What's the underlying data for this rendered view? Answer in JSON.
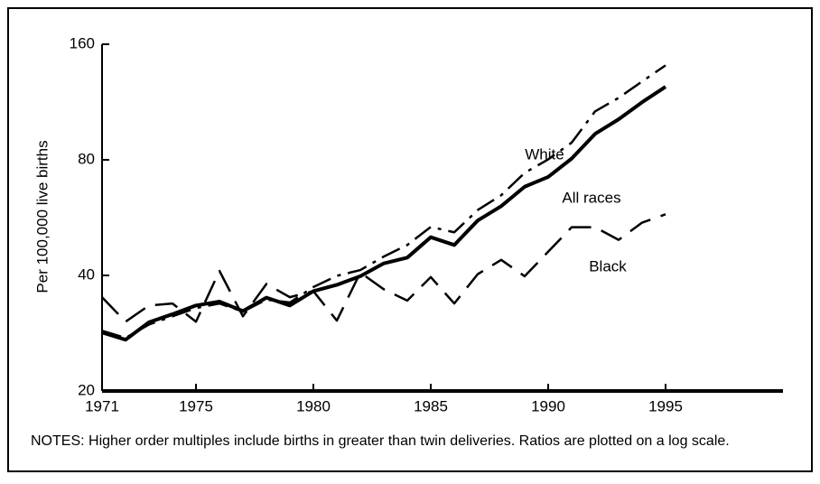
{
  "chart_data": {
    "type": "line",
    "ylabel": "Per 100,000 live births",
    "notes": "NOTES: Higher order multiples include births in greater than twin deliveries. Ratios are plotted on a log scale.",
    "log_scale": true,
    "x": [
      1971,
      1972,
      1973,
      1974,
      1975,
      1976,
      1977,
      1978,
      1979,
      1980,
      1981,
      1982,
      1983,
      1984,
      1985,
      1986,
      1987,
      1988,
      1989,
      1990,
      1991,
      1992,
      1993,
      1994,
      1995
    ],
    "xlim": [
      1971,
      2000
    ],
    "xticks": [
      1971,
      1975,
      1980,
      1985,
      1990,
      1995
    ],
    "ylim": [
      20,
      160
    ],
    "yticks": [
      20,
      40,
      80,
      160
    ],
    "series": [
      {
        "name": "White",
        "color": "#000000",
        "dash": "dash-dot",
        "values": [
          28.7,
          27.5,
          29.8,
          31.3,
          32.9,
          33.8,
          32.2,
          34.6,
          34.0,
          37.3,
          39.9,
          41.3,
          44.8,
          48.0,
          53.5,
          51.8,
          59.2,
          64.7,
          74.0,
          80.2,
          88.7,
          107,
          116,
          128,
          141
        ]
      },
      {
        "name": "All races",
        "color": "#000000",
        "dash": "solid",
        "values": [
          28.4,
          27.2,
          30.2,
          31.7,
          33.4,
          34.2,
          32.3,
          35.0,
          33.4,
          36.4,
          37.8,
          39.8,
          43.0,
          44.5,
          50.3,
          48.0,
          55.6,
          60.6,
          68.1,
          72.2,
          80.6,
          93.5,
          102,
          113,
          124
        ]
      },
      {
        "name": "Black",
        "color": "#000000",
        "dash": "dashed",
        "values": [
          35.1,
          30.3,
          33.4,
          33.8,
          30.3,
          41.1,
          31.3,
          38.0,
          35.1,
          36.4,
          30.5,
          40.7,
          36.8,
          34.4,
          39.6,
          33.8,
          40.3,
          43.9,
          39.8,
          46.1,
          53.4,
          53.4,
          49.5,
          54.9,
          57.7
        ]
      }
    ]
  }
}
